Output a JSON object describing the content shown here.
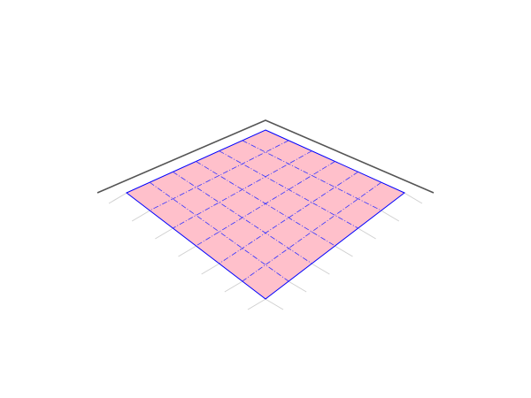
{
  "diagram": {
    "kind": "isometric-surface-plane",
    "grid_divisions": 6,
    "tick_count": 7,
    "colors": {
      "background": "#ffffff",
      "plane_fill": "#ffc0cb",
      "plane_edge": "#0000ff",
      "grid_line": "#3333ff",
      "frame_axis": "#555555",
      "tick_line": "#d0d0d0"
    }
  }
}
